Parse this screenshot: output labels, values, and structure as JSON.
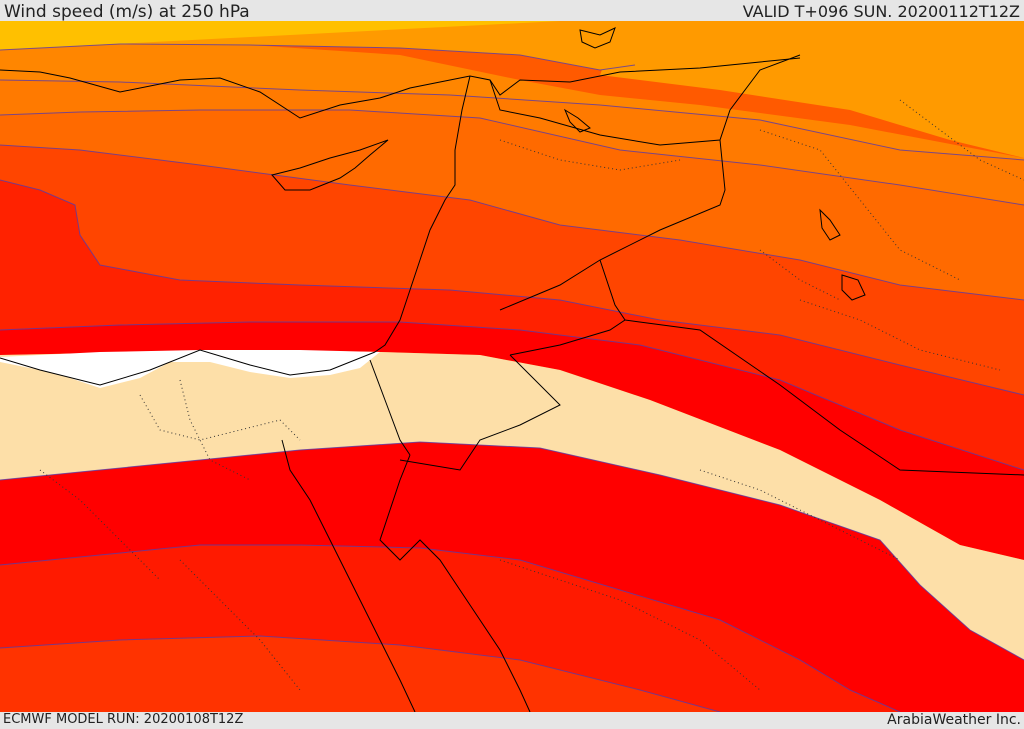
{
  "header": {
    "title": "Wind speed (m/s) at 250 hPa",
    "valid": "VALID T+096 SUN. 20200112T12Z"
  },
  "footer": {
    "model_run": "ECMWF MODEL RUN: 20200108T12Z",
    "credit": "ArabiaWeather Inc."
  },
  "map": {
    "field": "wind speed at 250 hPa",
    "fill_colors": {
      "lowest": "#ffffff",
      "low": "#fddfa8",
      "band_red": "#ff0000",
      "band_red_orange": "#ff1a00",
      "band_orange_red": "#ff3300",
      "band_orange": "#ff5a00",
      "band_light_orange": "#ff7a00",
      "band_amber": "#ff9a00",
      "band_yellow_orange": "#ffc000"
    },
    "contour_color": "#5a3aa8",
    "coastline_color": "#000000",
    "border_style": "dotted"
  }
}
